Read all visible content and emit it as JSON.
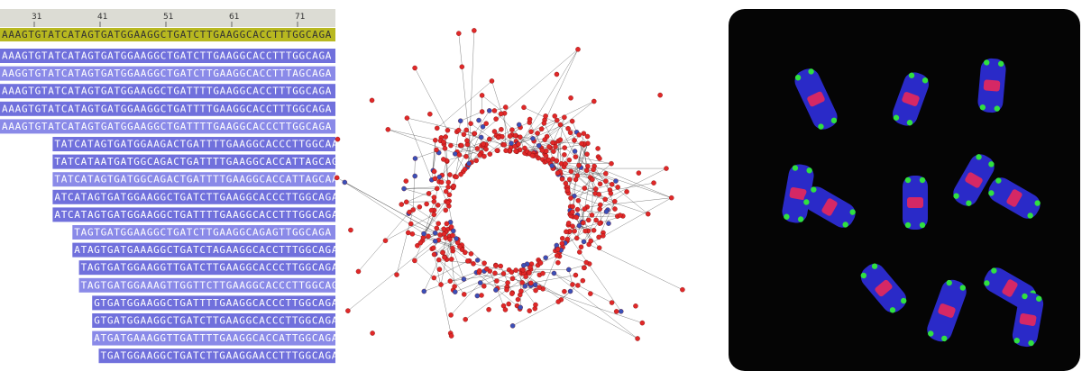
{
  "ruler": {
    "ticks": [
      31,
      41,
      51,
      61,
      71
    ]
  },
  "consensus": "AAAGTGTATCATAGTGATGGAAGGCTGATCTTGAAGGCACCTTTGGCAGA",
  "reads": [
    "AAAGTGTATCATAGTGATGGAAGGCTGATCTTGAAGGCACCTTTGGCAGA",
    "AAGGTGTATCATAGTGATGGAAGGCTGATCTTGAAGGCACCTTTAGCAGA",
    "AAAGTGTATCATAGTGATGGAAGGCTGATTTTGAAGGCACCTTTGGCAGA",
    "AAAGTGTATCATAGTGATGGAAGGCTGATTTTGAAGGCACCTTTGGCAGA",
    "AAAGTGTATCATAGTGATGGAAGGCTGATTTTGAAGGCACCCTTGGCAGA",
    "TATCATAGTGATGGAAGACTGATTTTGAAGGCACCCTTGGCAAA",
    "TATCATAATGATGGCAGACTGATTTTGAAGGCACCATTAGCAGA",
    "TATCATAGTGATGGCAGACTGATTTTGAAGGCACCATTAGCAAA",
    "ATCATAGTGATGGAAGGCTGATCTTGAAGGCACCCTTGGCAGA",
    "ATCATAGTGATGGAAGGCTGATTTTGAAGGCACCTTTGGCAGA",
    "TAGTGATGGAAGGCTGATCTTGAAGGCAGAGTTGGCAGA",
    "ATAGTGATGAAAGGCTGATCTAGAAGGCACCTTTGGCAGA",
    "TAGTGATGGAAGGTTGATCTTGAAGGCACCCTTGGCAGA",
    "TAGTGATGGAAAGTTGGTTCTTGAAGGCACCCTTGGCAGA",
    "GTGATGGAAGGCTGATTTTGAAGGCACCCTTGGCAGA",
    "GTGATGGAAGGCTGATCTTGAAGGCACCCTTGGCAGA",
    "ATGATGAAAGGTTGATTTTGAAGGCACCATTGGCAGA",
    "TGATGGAAGGCTGATCTTGAAGGAACCTTTGGCAGA"
  ]
}
